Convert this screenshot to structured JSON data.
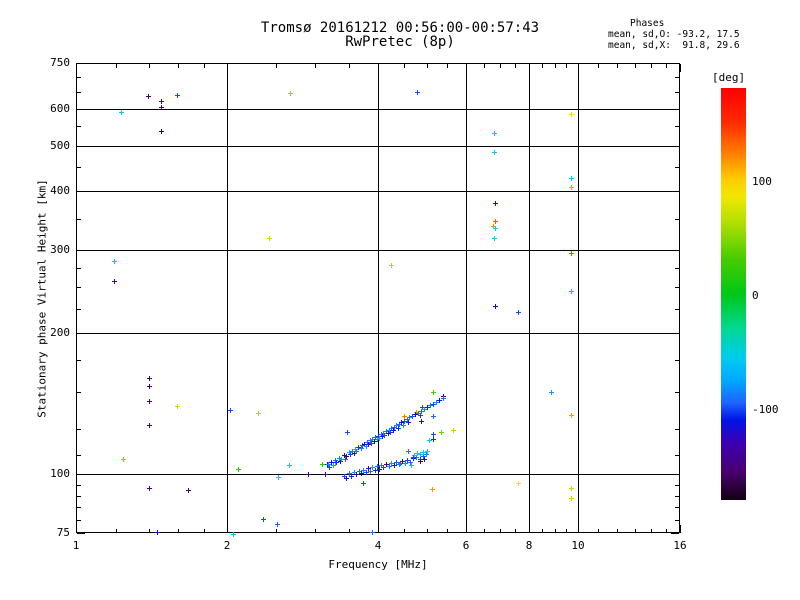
{
  "title": {
    "line1": "Tromsø 20161212 00:56:00-00:57:43",
    "line2": "RwPretec (8p)"
  },
  "stats": {
    "header": "Phases",
    "o_line": "mean, sd,O: -93.2, 17.5",
    "x_line": "mean, sd,X:  91.8, 29.6"
  },
  "chart_data": {
    "type": "scatter",
    "title": "Tromsø 20161212 00:56:00-00:57:43",
    "subtitle": "RwPretec (8p)",
    "xlabel": "Frequency [MHz]",
    "ylabel": "Stationary phase Virtual Height [km]",
    "xscale": "log",
    "yscale": "log",
    "xlim": [
      1,
      16
    ],
    "ylim": [
      75,
      750
    ],
    "grid": "on",
    "grid_x": [
      2,
      4,
      6,
      8,
      10
    ],
    "grid_y": [
      100,
      200,
      300,
      400,
      500,
      600
    ],
    "x_major_ticks": [
      1,
      2,
      4,
      6,
      8,
      10,
      16
    ],
    "x_minor_ticks": [
      1.2,
      1.4,
      1.6,
      1.8,
      2.5,
      3,
      3.5,
      4.5,
      5,
      5.5,
      6.5,
      7,
      7.5,
      8.5,
      9,
      9.5,
      11,
      12,
      13,
      14,
      15
    ],
    "y_major_ticks": [
      75,
      100,
      200,
      300,
      400,
      500,
      600,
      750
    ],
    "y_minor_ticks": [
      80,
      85,
      90,
      95,
      110,
      125,
      150,
      175,
      225,
      250,
      275,
      350,
      450,
      550,
      650,
      700
    ],
    "marker": "plus",
    "colorbar": {
      "label": "[deg]",
      "range": [
        -180,
        180
      ],
      "ticks": [
        {
          "value": 100,
          "label": "100"
        },
        {
          "value": 0,
          "label": "0"
        },
        {
          "value": -100,
          "label": "-100"
        }
      ],
      "stops": [
        [
          180,
          "#ff0000"
        ],
        [
          150,
          "#ff2a00"
        ],
        [
          120,
          "#ff8800"
        ],
        [
          100,
          "#ffcc00"
        ],
        [
          85,
          "#f0e800"
        ],
        [
          60,
          "#aade00"
        ],
        [
          30,
          "#44cc00"
        ],
        [
          0,
          "#00c818"
        ],
        [
          -30,
          "#00d890"
        ],
        [
          -55,
          "#00ccee"
        ],
        [
          -75,
          "#00aaff"
        ],
        [
          -95,
          "#1e64ff"
        ],
        [
          -110,
          "#0014e6"
        ],
        [
          -130,
          "#3c00b4"
        ],
        [
          -155,
          "#48006e"
        ],
        [
          -180,
          "#140014"
        ]
      ]
    },
    "points_format": [
      "freq_MHz",
      "virtual_height_km",
      "phase_deg"
    ],
    "points": [
      [
        1.39,
        638,
        -160
      ],
      [
        1.48,
        622,
        -120
      ],
      [
        1.59,
        641,
        -100
      ],
      [
        1.48,
        604,
        -150
      ],
      [
        1.23,
        590,
        -60
      ],
      [
        1.48,
        537,
        -165
      ],
      [
        2.67,
        646,
        55
      ],
      [
        4.79,
        652,
        -100
      ],
      [
        9.7,
        585,
        95
      ],
      [
        6.8,
        532,
        -55
      ],
      [
        6.8,
        484,
        -55
      ],
      [
        9.7,
        428,
        -60
      ],
      [
        9.7,
        408,
        115
      ],
      [
        6.85,
        377,
        -115
      ],
      [
        6.85,
        346,
        135
      ],
      [
        6.78,
        338,
        120
      ],
      [
        6.85,
        335,
        -55
      ],
      [
        6.8,
        318,
        -55
      ],
      [
        9.7,
        296,
        140
      ],
      [
        9.7,
        246,
        -60
      ],
      [
        6.85,
        228,
        -115
      ],
      [
        7.6,
        221,
        -100
      ],
      [
        2.43,
        318,
        65
      ],
      [
        1.19,
        285,
        -60
      ],
      [
        1.19,
        258,
        -130
      ],
      [
        4.25,
        279,
        60
      ],
      [
        8.85,
        150,
        -80
      ],
      [
        9.7,
        134,
        115
      ],
      [
        5.65,
        124,
        60
      ],
      [
        7.6,
        96,
        90
      ],
      [
        9.7,
        93.5,
        65
      ],
      [
        9.7,
        89,
        65
      ],
      [
        1.4,
        160,
        -150
      ],
      [
        1.4,
        154,
        -150
      ],
      [
        1.4,
        143,
        -150
      ],
      [
        1.59,
        140,
        65
      ],
      [
        1.4,
        127,
        -150
      ],
      [
        1.24,
        108,
        115
      ],
      [
        2.03,
        137,
        -100
      ],
      [
        2.31,
        135,
        60
      ],
      [
        2.1,
        102.6,
        15
      ],
      [
        2.66,
        104.5,
        -50
      ],
      [
        2.53,
        98.5,
        -55
      ],
      [
        2.9,
        100,
        -140
      ],
      [
        3.13,
        100,
        -140
      ],
      [
        1.4,
        93.7,
        -150
      ],
      [
        1.67,
        92.4,
        -150
      ],
      [
        2.36,
        80.4,
        -100
      ],
      [
        2.52,
        78.5,
        -95
      ],
      [
        1.45,
        75.5,
        -115
      ],
      [
        2.06,
        74.8,
        -60
      ],
      [
        3.9,
        75.3,
        -90
      ],
      [
        5.12,
        93,
        115
      ],
      [
        3.17,
        105.3,
        -145
      ],
      [
        3.28,
        106,
        10
      ],
      [
        3.74,
        96,
        -100
      ],
      [
        4.76,
        136,
        120
      ],
      [
        4.5,
        133,
        125
      ],
      [
        4.42,
        105.6,
        150
      ],
      [
        5.15,
        149.8,
        30
      ],
      [
        5.39,
        147,
        -160
      ],
      [
        5.33,
        123,
        40
      ],
      [
        4.9,
        139,
        -100
      ],
      [
        5.15,
        133,
        -95
      ],
      [
        5.15,
        122,
        -100
      ],
      [
        5.15,
        119,
        -105
      ],
      [
        4.88,
        130,
        -120
      ],
      [
        4.65,
        104.5,
        -55
      ],
      [
        3.47,
        123,
        -100
      ],
      [
        3.1,
        105.3,
        15
      ],
      [
        3.18,
        105.2,
        -85
      ],
      [
        3.2,
        103.5,
        -100
      ],
      [
        3.22,
        106,
        -115
      ],
      [
        3.26,
        104.4,
        -75
      ],
      [
        3.28,
        107.2,
        -95
      ],
      [
        3.3,
        106.2,
        -105
      ],
      [
        3.34,
        108.5,
        -90
      ],
      [
        3.36,
        106.5,
        -130
      ],
      [
        3.38,
        107.8,
        -80
      ],
      [
        3.42,
        110.1,
        -110
      ],
      [
        3.44,
        108,
        -95
      ],
      [
        3.46,
        109.4,
        -150
      ],
      [
        3.5,
        111.7,
        -70
      ],
      [
        3.52,
        110.2,
        -100
      ],
      [
        3.55,
        112.2,
        -85
      ],
      [
        3.58,
        110.8,
        -120
      ],
      [
        3.6,
        113.2,
        -60
      ],
      [
        3.62,
        111.9,
        -95
      ],
      [
        3.65,
        114.1,
        -105
      ],
      [
        3.7,
        113.6,
        -88
      ],
      [
        3.72,
        115.3,
        -100
      ],
      [
        3.75,
        116.1,
        -115
      ],
      [
        3.78,
        114.9,
        -78
      ],
      [
        3.8,
        117,
        -95
      ],
      [
        3.82,
        115.8,
        -140
      ],
      [
        3.85,
        118,
        -92
      ],
      [
        3.88,
        116.8,
        -100
      ],
      [
        3.9,
        118.9,
        -82
      ],
      [
        3.92,
        117.6,
        -110
      ],
      [
        3.95,
        119.9,
        -96
      ],
      [
        3.98,
        118.7,
        -88
      ],
      [
        4,
        120.8,
        -104
      ],
      [
        4.02,
        119.5,
        -75
      ],
      [
        4.05,
        121.7,
        -98
      ],
      [
        4.08,
        120.4,
        -118
      ],
      [
        4.1,
        122.7,
        -86
      ],
      [
        4.12,
        121.3,
        -100
      ],
      [
        4.15,
        123.6,
        -94
      ],
      [
        4.18,
        122.2,
        -155
      ],
      [
        4.2,
        124.5,
        -80
      ],
      [
        4.22,
        123.1,
        -102
      ],
      [
        4.25,
        125.4,
        -90
      ],
      [
        4.28,
        124,
        -112
      ],
      [
        4.3,
        126.3,
        -97
      ],
      [
        4.35,
        127.2,
        -85
      ],
      [
        4.38,
        125.7,
        -105
      ],
      [
        4.4,
        128.1,
        -93
      ],
      [
        4.45,
        129,
        -120
      ],
      [
        4.48,
        127.4,
        -83
      ],
      [
        4.5,
        129.9,
        -100
      ],
      [
        4.56,
        131,
        -91
      ],
      [
        4.6,
        129.4,
        -108
      ],
      [
        4.62,
        132.1,
        -87
      ],
      [
        4.68,
        133.1,
        -99
      ],
      [
        4.74,
        134.2,
        -115
      ],
      [
        4.8,
        135.3,
        -89
      ],
      [
        4.84,
        133.5,
        -102
      ],
      [
        4.87,
        136.5,
        -95
      ],
      [
        4.94,
        137.7,
        -82
      ],
      [
        5.01,
        138.9,
        -106
      ],
      [
        5.08,
        140.1,
        -92
      ],
      [
        5.15,
        141.3,
        -100
      ],
      [
        5.22,
        142.5,
        -85
      ],
      [
        5.3,
        143.9,
        -110
      ],
      [
        5.38,
        145.2,
        -95
      ],
      [
        3.42,
        99,
        -100
      ],
      [
        3.46,
        98,
        -120
      ],
      [
        3.5,
        100.5,
        -90
      ],
      [
        3.54,
        99.4,
        -105
      ],
      [
        3.58,
        101.3,
        -80
      ],
      [
        3.62,
        100,
        -140
      ],
      [
        3.66,
        101.8,
        -95
      ],
      [
        3.7,
        100.5,
        -110
      ],
      [
        3.74,
        102.3,
        -85
      ],
      [
        3.78,
        101.1,
        -100
      ],
      [
        3.82,
        102.9,
        -125
      ],
      [
        3.86,
        101.7,
        -92
      ],
      [
        3.9,
        103.5,
        -78
      ],
      [
        3.94,
        102.2,
        -105
      ],
      [
        3.98,
        104,
        -96
      ],
      [
        4.02,
        102.8,
        -115
      ],
      [
        4.06,
        104.5,
        -88
      ],
      [
        4.1,
        103.4,
        -100
      ],
      [
        4.15,
        105.1,
        -150
      ],
      [
        4.2,
        104,
        -95
      ],
      [
        4.25,
        105.7,
        -83
      ],
      [
        4.3,
        104.6,
        -108
      ],
      [
        4.35,
        106.2,
        -97
      ],
      [
        4.4,
        105.2,
        -90
      ],
      [
        4.46,
        106.9,
        -118
      ],
      [
        4.52,
        105.8,
        -86
      ],
      [
        4.58,
        107.5,
        -101
      ],
      [
        4.64,
        106.4,
        -94
      ],
      [
        4.7,
        108.2,
        -112
      ],
      [
        4.77,
        108.9,
        -89
      ],
      [
        4.84,
        107.8,
        -103
      ],
      [
        4.91,
        109.5,
        -96
      ],
      [
        4.98,
        110.2,
        -84
      ],
      [
        4.72,
        110,
        -55
      ],
      [
        4.78,
        111,
        -50
      ],
      [
        4.85,
        110.5,
        -55
      ],
      [
        4.92,
        111.5,
        -60
      ],
      [
        4.7,
        109,
        -100
      ],
      [
        4.95,
        108,
        -150
      ],
      [
        4.85,
        106.5,
        -155
      ],
      [
        5,
        112,
        -55
      ],
      [
        5.05,
        118,
        -60
      ],
      [
        4.6,
        112,
        -90
      ]
    ]
  }
}
